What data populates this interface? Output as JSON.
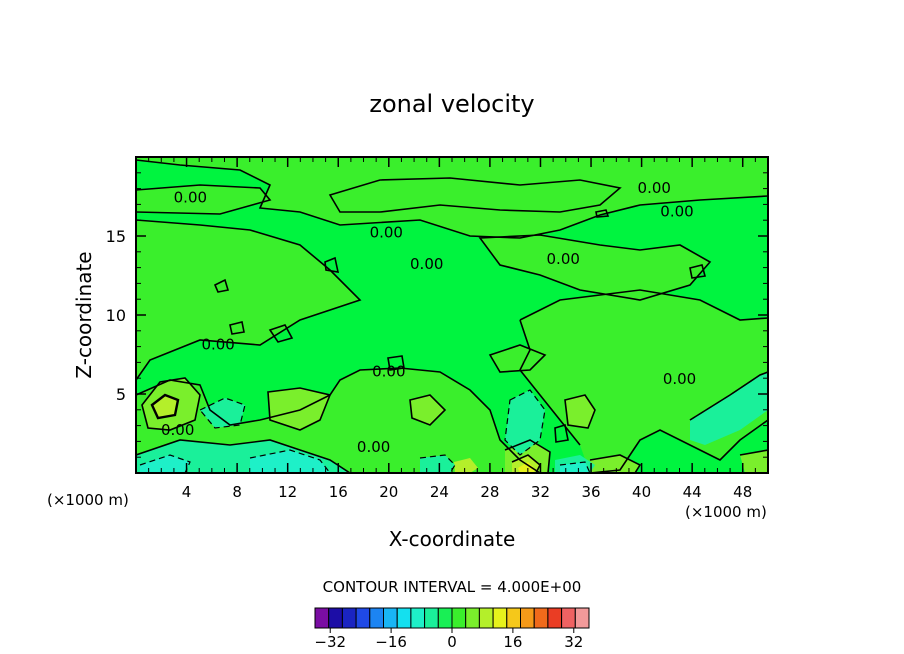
{
  "chart_data": {
    "type": "heatmap",
    "title": "zonal velocity",
    "xlabel": "X-coordinate",
    "ylabel": "Z-coordinate",
    "x_unit_left": "(×1000 m)",
    "x_unit_right": "(×1000 m)",
    "x_ticks": [
      4,
      8,
      12,
      16,
      20,
      24,
      28,
      32,
      36,
      40,
      44,
      48
    ],
    "y_ticks": [
      5,
      10,
      15
    ],
    "xlim": [
      0,
      50
    ],
    "ylim": [
      0,
      20
    ],
    "contour_interval_text": "CONTOUR INTERVAL = 4.000E+00",
    "contour_labels": [
      {
        "text": "0.00",
        "x": 4.3,
        "z": 17.5
      },
      {
        "text": "0.00",
        "x": 19.8,
        "z": 15.3
      },
      {
        "text": "0.00",
        "x": 23.0,
        "z": 13.3
      },
      {
        "text": "0.00",
        "x": 33.8,
        "z": 13.6
      },
      {
        "text": "0.00",
        "x": 41.0,
        "z": 18.1
      },
      {
        "text": "0.00",
        "x": 42.8,
        "z": 16.6
      },
      {
        "text": "0.00",
        "x": 6.5,
        "z": 8.2
      },
      {
        "text": "0.00",
        "x": 20.0,
        "z": 6.5
      },
      {
        "text": "0.00",
        "x": 43.0,
        "z": 6.0
      },
      {
        "text": "0.00",
        "x": 3.3,
        "z": 2.8
      },
      {
        "text": "0.00",
        "x": 18.8,
        "z": 1.7
      }
    ],
    "colorbar": {
      "min": -36,
      "max": 36,
      "interval": 4,
      "tick_labels": [
        "-32",
        "-16",
        "0",
        "16",
        "32"
      ],
      "tick_values": [
        -32,
        -16,
        0,
        16,
        32
      ],
      "colors": [
        "#7a0da3",
        "#1c0da6",
        "#1a24c2",
        "#1f49e6",
        "#1c84f2",
        "#19b5f5",
        "#14e0ef",
        "#1ef0c8",
        "#1af09a",
        "#19ef55",
        "#3aef2c",
        "#7aef2c",
        "#b4ef2a",
        "#e6f21c",
        "#f5c81a",
        "#f59a19",
        "#f06a1b",
        "#ea3d24",
        "#ef6262",
        "#f29a9a"
      ]
    },
    "regions": [
      {
        "value": 0,
        "color": "#19ef55"
      },
      {
        "value": 4,
        "color": "#3aef2c"
      },
      {
        "value": -4,
        "color": "#1af09a"
      },
      {
        "value": -8,
        "color": "#1ef0c8"
      },
      {
        "value": 8,
        "color": "#7aef2c"
      },
      {
        "value": 12,
        "color": "#b4ef2a"
      }
    ]
  }
}
